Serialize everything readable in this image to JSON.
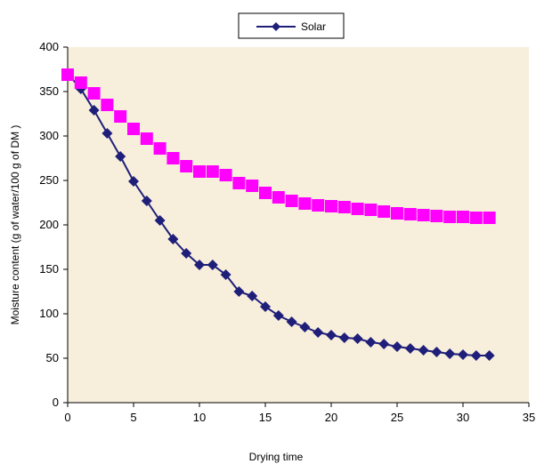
{
  "chart_data": {
    "type": "scatter",
    "title": "",
    "xlabel": "Drying time",
    "ylabel": "Moisture content (g of water/100 g of DM )",
    "xlim": [
      0,
      35
    ],
    "ylim": [
      0,
      400
    ],
    "xticks": [
      0,
      5,
      10,
      15,
      20,
      25,
      30,
      35
    ],
    "yticks": [
      0,
      50,
      100,
      150,
      200,
      250,
      300,
      350,
      400
    ],
    "grid": false,
    "legend_position": "top",
    "colors": {
      "solar": "#1f1f7a",
      "second": "#ff00ff",
      "plot_background": "#f7eedc"
    },
    "series": [
      {
        "name": "Solar",
        "marker": "diamond",
        "line": true,
        "x": [
          0,
          1,
          2,
          3,
          4,
          5,
          6,
          7,
          8,
          9,
          10,
          11,
          12,
          13,
          14,
          15,
          16,
          17,
          18,
          19,
          20,
          21,
          22,
          23,
          24,
          25,
          26,
          27,
          28,
          29,
          30,
          31,
          32
        ],
        "y": [
          370,
          353,
          329,
          303,
          277,
          249,
          227,
          205,
          184,
          168,
          155,
          155,
          144,
          125,
          120,
          108,
          98,
          91,
          85,
          79,
          76,
          73,
          72,
          68,
          66,
          63,
          61,
          59,
          57,
          55,
          54,
          53,
          53
        ]
      },
      {
        "marker": "square",
        "line": false,
        "x": [
          0,
          1,
          2,
          3,
          4,
          5,
          6,
          7,
          8,
          9,
          10,
          11,
          12,
          13,
          14,
          15,
          16,
          17,
          18,
          19,
          20,
          21,
          22,
          23,
          24,
          25,
          26,
          27,
          28,
          29,
          30,
          31,
          32
        ],
        "y": [
          369,
          360,
          348,
          335,
          322,
          308,
          297,
          286,
          275,
          266,
          260,
          260,
          256,
          247,
          244,
          236,
          231,
          227,
          224,
          222,
          221,
          220,
          218,
          217,
          215,
          213,
          212,
          211,
          210,
          209,
          209,
          208,
          208
        ]
      }
    ]
  }
}
